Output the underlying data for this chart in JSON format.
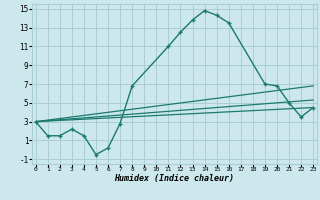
{
  "bg_color": "#cde8ec",
  "grid_color": "#aacdd4",
  "line_color": "#1a7a6e",
  "series1_x": [
    0,
    1,
    2,
    3,
    4,
    5,
    6,
    7,
    8,
    11,
    12,
    13,
    14,
    15,
    16,
    19,
    20,
    21,
    22,
    23
  ],
  "series1_y": [
    3,
    1.5,
    1.5,
    2.2,
    1.5,
    -0.5,
    0.2,
    2.8,
    6.8,
    11.0,
    12.5,
    13.8,
    14.8,
    14.3,
    13.5,
    7.0,
    6.8,
    5.0,
    3.5,
    4.5
  ],
  "series2_x": [
    0,
    23
  ],
  "series2_y": [
    3.0,
    6.8
  ],
  "series3_x": [
    0,
    23
  ],
  "series3_y": [
    3.0,
    5.3
  ],
  "series4_x": [
    0,
    23
  ],
  "series4_y": [
    3.0,
    4.5
  ],
  "xlim": [
    -0.3,
    23.3
  ],
  "ylim": [
    -1.5,
    15.5
  ],
  "xticks": [
    0,
    1,
    2,
    3,
    4,
    5,
    6,
    7,
    8,
    9,
    10,
    11,
    12,
    13,
    14,
    15,
    16,
    17,
    18,
    19,
    20,
    21,
    22,
    23
  ],
  "yticks": [
    -1,
    1,
    3,
    5,
    7,
    9,
    11,
    13,
    15
  ],
  "xlabel": "Humidex (Indice chaleur)"
}
